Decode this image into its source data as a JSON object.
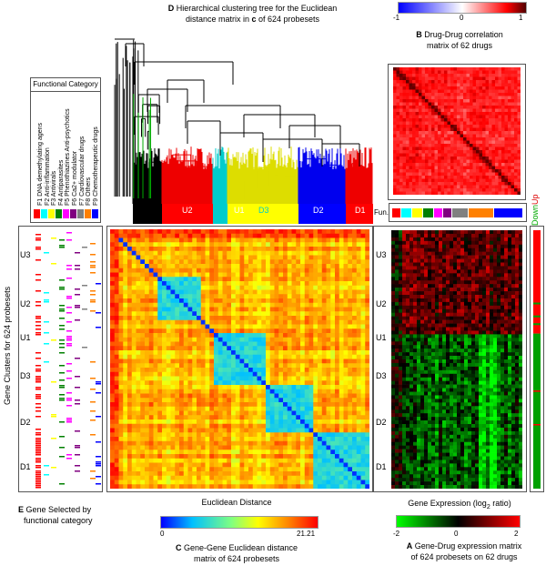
{
  "panel_d": {
    "letter": "D",
    "line1": "Hierarchical clustering tree for the Euclidean",
    "line2_pre": "distance matrix in ",
    "line2_bold": "c",
    "line2_post": " of 624 probesets",
    "cluster_labels": [
      {
        "label": "U3",
        "color": "#000000"
      },
      {
        "label": "U2",
        "color": "#ff0000"
      },
      {
        "label": "U1",
        "color": "#00ffff"
      },
      {
        "label": "D3",
        "color": "#ffff00"
      },
      {
        "label": "D2",
        "color": "#0000ff"
      },
      {
        "label": "D1",
        "color": "#ff0000"
      }
    ]
  },
  "panel_b": {
    "letter": "B",
    "line1": "Drug-Drug correlation",
    "line2": "matrix of 62 drugs",
    "scale_ticks": [
      "-1",
      "0",
      "1"
    ]
  },
  "functional_category": {
    "title": "Functional Category",
    "items": [
      "F1 DNA demethylating agens",
      "F2 Anti-inflammation",
      "F3 Antivirals",
      "F4 Antiparasites",
      "F5 Phenothiazines Anti-psychotics",
      "F6 Ca2+ modulator",
      "F7 Cardiovascular drugs",
      "F8 Others",
      "F9 Chemotherapeutic drugs"
    ],
    "colors": [
      "#ff0000",
      "#00ffff",
      "#ffff00",
      "#008000",
      "#ff00ff",
      "#800080",
      "#808080",
      "#ff8000",
      "#0000ff"
    ]
  },
  "fun_label": "Fun.",
  "down_up": {
    "down": "Down",
    "up": "Up"
  },
  "row_labels": [
    "U3",
    "U2",
    "U1",
    "D3",
    "D2",
    "D1"
  ],
  "gene_clusters_label": "Gene Clusters for 624 probesets",
  "panel_e": {
    "letter": "E",
    "line1": "Gene Selected by",
    "line2": "functional category"
  },
  "panel_c": {
    "axis_title": "Euclidean Distance",
    "ticks": [
      "0",
      "21.21"
    ],
    "letter": "C",
    "line1": "Gene-Gene Euclidean distance",
    "line2": "matrix of 624 probesets"
  },
  "panel_a": {
    "axis_title_pre": "Gene Expression (log",
    "axis_title_sub": "2",
    "axis_title_post": " ratio)",
    "ticks": [
      "-2",
      "0",
      "2"
    ],
    "letter": "A",
    "line1": "Gene-Drug expression matrix",
    "line2": "of 624 probesets on 62 drugs"
  },
  "colors": {
    "blue_red_scale": [
      "#0000ff",
      "#ffffff",
      "#ff0000",
      "#400000"
    ],
    "distance_scale": [
      "#0000ff",
      "#00c0ff",
      "#80ff80",
      "#ffff00",
      "#ff8000",
      "#ff0000"
    ],
    "expression_scale": [
      "#00ff00",
      "#000000",
      "#ff0000"
    ]
  }
}
